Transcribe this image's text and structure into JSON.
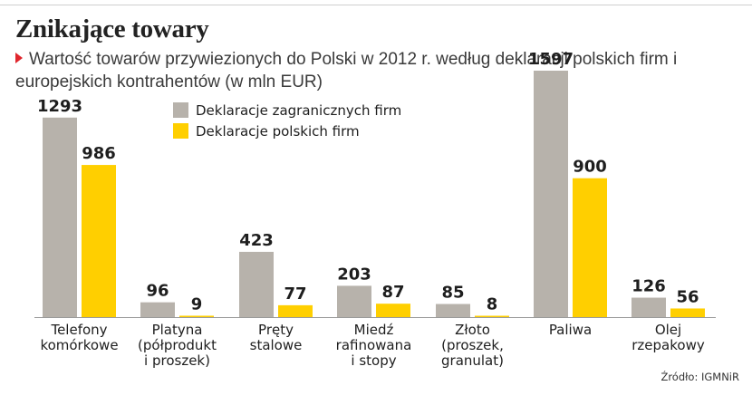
{
  "title": "Znikające towary",
  "subtitle": "Wartość towarów przywiezionych do Polski w 2012 r. według deklaracji polskich firm i europejskich kontrahentów (w mln EUR)",
  "source": "Źródło: IGMNiR",
  "colors": {
    "foreign": "#b7b2ab",
    "polish": "#ffcf00",
    "marker": "#e0262d",
    "baseline": "#9a9a9a"
  },
  "chart_data": {
    "type": "bar",
    "title": "Znikające towary",
    "subtitle": "Wartość towarów przywiezionych do Polski w 2012 r. według deklaracji polskich firm i europejskich kontrahentów (w mln EUR)",
    "ylim": [
      0,
      1597
    ],
    "grid": false,
    "legend": "top-left",
    "categories": [
      [
        "Telefony",
        "komórkowe"
      ],
      [
        "Platyna",
        "(półprodukt",
        "i proszek)"
      ],
      [
        "Pręty",
        "stalowe"
      ],
      [
        "Miedź",
        "rafinowana",
        "i stopy"
      ],
      [
        "Złoto",
        "(proszek,",
        "granulat)"
      ],
      [
        "Paliwa"
      ],
      [
        "Olej",
        "rzepakowy"
      ]
    ],
    "series": [
      {
        "name": "Deklaracje zagranicznych firm",
        "color": "#b7b2ab",
        "values": [
          1293,
          96,
          423,
          203,
          85,
          1597,
          126
        ]
      },
      {
        "name": "Deklaracje polskich firm",
        "color": "#ffcf00",
        "values": [
          986,
          9,
          77,
          87,
          8,
          900,
          56
        ]
      }
    ]
  }
}
